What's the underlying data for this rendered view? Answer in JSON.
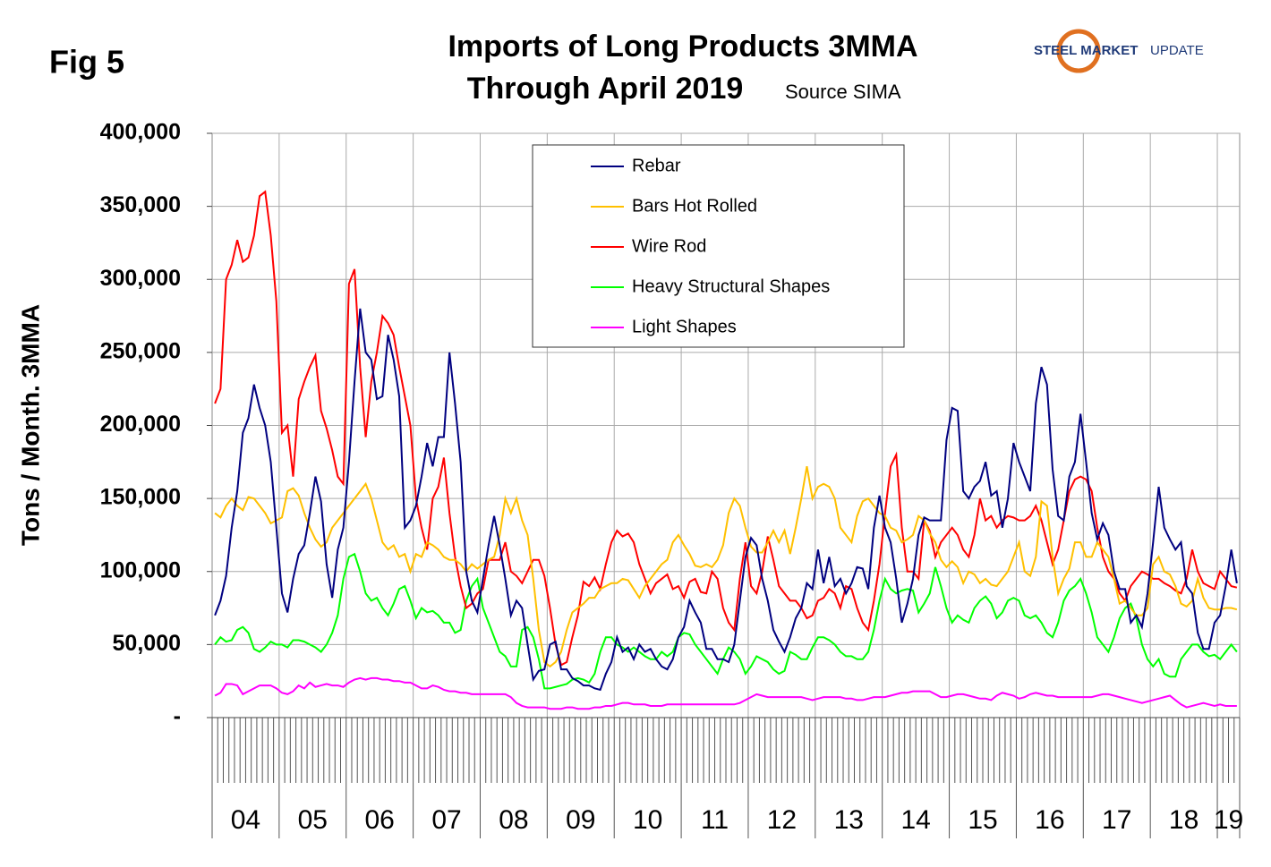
{
  "fig_label": "Fig 5",
  "logo": {
    "bold": "STEEL MARKET",
    "rest": "UPDATE"
  },
  "chart_data": {
    "type": "line",
    "title": [
      "Imports of Long Products 3MMA",
      "Through April 2019"
    ],
    "subtitle": "Source SIMA",
    "y_label": "Tons / Month. 3MMA",
    "ylim": [
      0,
      400000
    ],
    "yticks": [
      {
        "value": 0,
        "label": "-"
      },
      {
        "value": 50000,
        "label": "50,000"
      },
      {
        "value": 100000,
        "label": "100,000"
      },
      {
        "value": 150000,
        "label": "150,000"
      },
      {
        "value": 200000,
        "label": "200,000"
      },
      {
        "value": 250000,
        "label": "250,000"
      },
      {
        "value": 300000,
        "label": "300,000"
      },
      {
        "value": 350000,
        "label": "350,000"
      },
      {
        "value": 400000,
        "label": "400,000"
      }
    ],
    "grid": true,
    "legend": "top-center",
    "categories": [
      null,
      null,
      null,
      null,
      null,
      null,
      "04",
      null,
      null,
      null,
      null,
      null,
      null,
      null,
      null,
      null,
      null,
      null,
      "05",
      null,
      null,
      null,
      null,
      null,
      null,
      null,
      null,
      null,
      null,
      null,
      "06",
      null,
      null,
      null,
      null,
      null,
      null,
      null,
      null,
      null,
      null,
      null,
      "07",
      null,
      null,
      null,
      null,
      null,
      null,
      null,
      null,
      null,
      null,
      null,
      "08",
      null,
      null,
      null,
      null,
      null,
      null,
      null,
      null,
      null,
      null,
      null,
      "09",
      null,
      null,
      null,
      null,
      null,
      null,
      null,
      null,
      null,
      null,
      null,
      "10",
      null,
      null,
      null,
      null,
      null,
      null,
      null,
      null,
      null,
      null,
      null,
      "11",
      null,
      null,
      null,
      null,
      null,
      null,
      null,
      null,
      null,
      null,
      null,
      "12",
      null,
      null,
      null,
      null,
      null,
      null,
      null,
      null,
      null,
      null,
      null,
      "13",
      null,
      null,
      null,
      null,
      null,
      null,
      null,
      null,
      null,
      null,
      null,
      "14",
      null,
      null,
      null,
      null,
      null,
      null,
      null,
      null,
      null,
      null,
      null,
      "15",
      null,
      null,
      null,
      null,
      null,
      null,
      null,
      null,
      null,
      null,
      null,
      "16",
      null,
      null,
      null,
      null,
      null,
      null,
      null,
      null,
      null,
      null,
      null,
      "17",
      null,
      null,
      null,
      null,
      null,
      null,
      null,
      null,
      null,
      null,
      null,
      "18",
      null,
      null,
      null,
      null,
      null,
      null,
      null,
      "19",
      null
    ],
    "series": [
      {
        "name": "Rebar",
        "color": "#000080",
        "values": [
          70000,
          80000,
          97000,
          130000,
          155000,
          195000,
          205000,
          228000,
          212000,
          200000,
          175000,
          130000,
          85000,
          72000,
          95000,
          112000,
          118000,
          140000,
          165000,
          148000,
          105000,
          82000,
          115000,
          130000,
          175000,
          230000,
          280000,
          250000,
          245000,
          218000,
          220000,
          262000,
          245000,
          220000,
          130000,
          135000,
          145000,
          165000,
          188000,
          172000,
          192000,
          192000,
          250000,
          215000,
          175000,
          100000,
          80000,
          72000,
          95000,
          118000,
          138000,
          118000,
          95000,
          70000,
          80000,
          75000,
          50000,
          26000,
          32000,
          33000,
          50000,
          52000,
          33000,
          33000,
          27000,
          25000,
          22000,
          22000,
          20000,
          19000,
          30000,
          38000,
          55000,
          45000,
          48000,
          40000,
          50000,
          45000,
          47000,
          40000,
          35000,
          33000,
          40000,
          55000,
          62000,
          80000,
          72000,
          65000,
          47000,
          47000,
          40000,
          40000,
          38000,
          50000,
          80000,
          110000,
          123000,
          118000,
          95000,
          80000,
          60000,
          52000,
          45000,
          55000,
          68000,
          75000,
          92000,
          88000,
          115000,
          92000,
          110000,
          90000,
          95000,
          85000,
          92000,
          103000,
          102000,
          88000,
          130000,
          152000,
          130000,
          120000,
          95000,
          65000,
          78000,
          95000,
          125000,
          137000,
          135000,
          135000,
          135000,
          190000,
          212000,
          210000,
          155000,
          150000,
          158000,
          162000,
          175000,
          152000,
          155000,
          130000,
          150000,
          188000,
          175000,
          165000,
          155000,
          215000,
          240000,
          228000,
          170000,
          138000,
          135000,
          165000,
          175000,
          208000,
          175000,
          140000,
          122000,
          133000,
          125000,
          100000,
          88000,
          88000,
          65000,
          70000,
          62000,
          85000,
          120000,
          158000,
          130000,
          122000,
          115000,
          120000,
          90000,
          85000,
          58000,
          47000,
          47000,
          65000,
          70000,
          90000,
          115000,
          92000
        ]
      },
      {
        "name": "Bars Hot Rolled",
        "color": "#ffc000",
        "values": [
          140000,
          137000,
          145000,
          150000,
          145000,
          142000,
          151000,
          150000,
          145000,
          140000,
          133000,
          135000,
          137000,
          155000,
          157000,
          152000,
          140000,
          130000,
          122000,
          117000,
          120000,
          130000,
          135000,
          140000,
          145000,
          150000,
          155000,
          160000,
          150000,
          135000,
          120000,
          115000,
          118000,
          110000,
          112000,
          100000,
          112000,
          110000,
          120000,
          118000,
          115000,
          110000,
          108000,
          108000,
          105000,
          100000,
          105000,
          102000,
          105000,
          108000,
          110000,
          125000,
          150000,
          140000,
          150000,
          135000,
          125000,
          95000,
          60000,
          38000,
          35000,
          38000,
          45000,
          60000,
          72000,
          75000,
          78000,
          82000,
          82000,
          88000,
          90000,
          92000,
          92000,
          95000,
          94000,
          88000,
          82000,
          90000,
          95000,
          100000,
          105000,
          108000,
          120000,
          125000,
          118000,
          112000,
          104000,
          103000,
          105000,
          103000,
          108000,
          118000,
          140000,
          150000,
          145000,
          130000,
          117000,
          113000,
          113000,
          120000,
          128000,
          120000,
          128000,
          112000,
          130000,
          150000,
          172000,
          150000,
          158000,
          160000,
          158000,
          150000,
          130000,
          125000,
          120000,
          138000,
          148000,
          150000,
          145000,
          140000,
          138000,
          130000,
          128000,
          120000,
          122000,
          125000,
          138000,
          135000,
          126000,
          120000,
          108000,
          103000,
          107000,
          103000,
          92000,
          100000,
          98000,
          92000,
          95000,
          91000,
          90000,
          95000,
          100000,
          110000,
          120000,
          100000,
          97000,
          110000,
          148000,
          145000,
          110000,
          85000,
          95000,
          102000,
          120000,
          120000,
          110000,
          110000,
          120000,
          115000,
          110000,
          95000,
          78000,
          80000,
          75000,
          70000,
          70000,
          75000,
          105000,
          110000,
          100000,
          98000,
          90000,
          78000,
          76000,
          80000,
          95000,
          82000,
          75000,
          74000,
          74000,
          75000,
          75000,
          74000
        ]
      },
      {
        "name": "Wire Rod",
        "color": "#ff0000",
        "values": [
          215000,
          225000,
          300000,
          310000,
          327000,
          312000,
          315000,
          330000,
          357000,
          360000,
          330000,
          285000,
          195000,
          200000,
          165000,
          218000,
          230000,
          240000,
          248000,
          210000,
          198000,
          183000,
          165000,
          160000,
          297000,
          307000,
          240000,
          192000,
          230000,
          250000,
          275000,
          270000,
          262000,
          240000,
          220000,
          200000,
          150000,
          130000,
          115000,
          150000,
          158000,
          178000,
          140000,
          110000,
          90000,
          75000,
          78000,
          85000,
          88000,
          108000,
          108000,
          108000,
          120000,
          100000,
          97000,
          92000,
          100000,
          108000,
          108000,
          97000,
          75000,
          50000,
          36000,
          38000,
          55000,
          70000,
          93000,
          90000,
          96000,
          88000,
          105000,
          120000,
          128000,
          124000,
          126000,
          120000,
          105000,
          95000,
          85000,
          92000,
          95000,
          98000,
          88000,
          90000,
          82000,
          93000,
          95000,
          86000,
          85000,
          100000,
          95000,
          75000,
          65000,
          60000,
          95000,
          120000,
          90000,
          85000,
          100000,
          124000,
          108000,
          90000,
          85000,
          80000,
          80000,
          75000,
          68000,
          70000,
          80000,
          82000,
          88000,
          85000,
          75000,
          90000,
          88000,
          75000,
          65000,
          60000,
          80000,
          105000,
          140000,
          172000,
          180000,
          130000,
          100000,
          100000,
          95000,
          135000,
          128000,
          110000,
          120000,
          125000,
          130000,
          125000,
          115000,
          110000,
          125000,
          150000,
          135000,
          138000,
          130000,
          135000,
          138000,
          137000,
          135000,
          135000,
          138000,
          145000,
          135000,
          120000,
          105000,
          115000,
          135000,
          155000,
          163000,
          165000,
          163000,
          155000,
          130000,
          110000,
          100000,
          95000,
          85000,
          80000,
          90000,
          95000,
          100000,
          98000,
          95000,
          95000,
          92000,
          90000,
          87000,
          85000,
          95000,
          115000,
          100000,
          92000,
          90000,
          88000,
          100000,
          95000,
          90000,
          89000
        ]
      },
      {
        "name": "Heavy Structural Shapes",
        "color": "#00ff00",
        "values": [
          50000,
          55000,
          52000,
          53000,
          60000,
          62000,
          58000,
          47000,
          45000,
          48000,
          52000,
          50000,
          50000,
          48000,
          53000,
          53000,
          52000,
          50000,
          48000,
          45000,
          50000,
          58000,
          70000,
          95000,
          110000,
          112000,
          100000,
          85000,
          80000,
          82000,
          75000,
          70000,
          78000,
          88000,
          90000,
          80000,
          68000,
          75000,
          72000,
          73000,
          70000,
          65000,
          65000,
          58000,
          60000,
          80000,
          90000,
          95000,
          75000,
          65000,
          55000,
          45000,
          42000,
          35000,
          35000,
          60000,
          62000,
          55000,
          40000,
          20000,
          20000,
          21000,
          22000,
          23000,
          26000,
          27000,
          26000,
          24000,
          30000,
          45000,
          55000,
          55000,
          50000,
          48000,
          45000,
          48000,
          45000,
          42000,
          40000,
          40000,
          45000,
          42000,
          45000,
          55000,
          58000,
          57000,
          50000,
          45000,
          40000,
          35000,
          30000,
          40000,
          48000,
          45000,
          40000,
          30000,
          35000,
          42000,
          40000,
          38000,
          33000,
          30000,
          32000,
          45000,
          43000,
          40000,
          40000,
          48000,
          55000,
          55000,
          53000,
          50000,
          45000,
          42000,
          42000,
          40000,
          40000,
          45000,
          60000,
          80000,
          95000,
          88000,
          85000,
          87000,
          88000,
          87000,
          72000,
          78000,
          85000,
          103000,
          90000,
          75000,
          65000,
          70000,
          67000,
          65000,
          75000,
          80000,
          83000,
          78000,
          68000,
          72000,
          80000,
          82000,
          80000,
          70000,
          68000,
          70000,
          65000,
          58000,
          55000,
          65000,
          80000,
          87000,
          90000,
          95000,
          85000,
          72000,
          55000,
          50000,
          45000,
          55000,
          68000,
          75000,
          78000,
          68000,
          50000,
          40000,
          35000,
          40000,
          30000,
          28000,
          28000,
          40000,
          45000,
          50000,
          50000,
          45000,
          42000,
          43000,
          40000,
          45000,
          50000,
          45000
        ]
      },
      {
        "name": "Light Shapes",
        "color": "#ff00ff",
        "values": [
          15000,
          17000,
          23000,
          23000,
          22000,
          16000,
          18000,
          20000,
          22000,
          22000,
          22000,
          20000,
          17000,
          16000,
          18000,
          22000,
          20000,
          24000,
          21000,
          22000,
          23000,
          22000,
          22000,
          21000,
          24000,
          26000,
          27000,
          26000,
          27000,
          27000,
          26000,
          26000,
          25000,
          25000,
          24000,
          24000,
          22000,
          20000,
          20000,
          22000,
          21000,
          19000,
          18000,
          18000,
          17000,
          17000,
          16000,
          16000,
          16000,
          16000,
          16000,
          16000,
          16000,
          14000,
          10000,
          8000,
          7000,
          7000,
          7000,
          7000,
          6000,
          6000,
          6000,
          7000,
          7000,
          6000,
          6000,
          6000,
          7000,
          7000,
          8000,
          8000,
          9000,
          10000,
          10000,
          9000,
          9000,
          9000,
          8000,
          8000,
          8000,
          9000,
          9000,
          9000,
          9000,
          9000,
          9000,
          9000,
          9000,
          9000,
          9000,
          9000,
          9000,
          9000,
          10000,
          12000,
          14000,
          16000,
          15000,
          14000,
          14000,
          14000,
          14000,
          14000,
          14000,
          14000,
          13000,
          12000,
          13000,
          14000,
          14000,
          14000,
          14000,
          13000,
          13000,
          12000,
          12000,
          13000,
          14000,
          14000,
          14000,
          15000,
          16000,
          17000,
          17000,
          18000,
          18000,
          18000,
          18000,
          16000,
          14000,
          14000,
          15000,
          16000,
          16000,
          15000,
          14000,
          13000,
          13000,
          12000,
          15000,
          17000,
          16000,
          15000,
          13000,
          14000,
          16000,
          17000,
          16000,
          15000,
          15000,
          14000,
          14000,
          14000,
          14000,
          14000,
          14000,
          14000,
          15000,
          16000,
          16000,
          15000,
          14000,
          13000,
          12000,
          11000,
          10000,
          11000,
          12000,
          13000,
          14000,
          15000,
          12000,
          9000,
          7000,
          8000,
          9000,
          10000,
          9000,
          8000,
          9000,
          8000,
          8000,
          8000
        ]
      }
    ]
  }
}
